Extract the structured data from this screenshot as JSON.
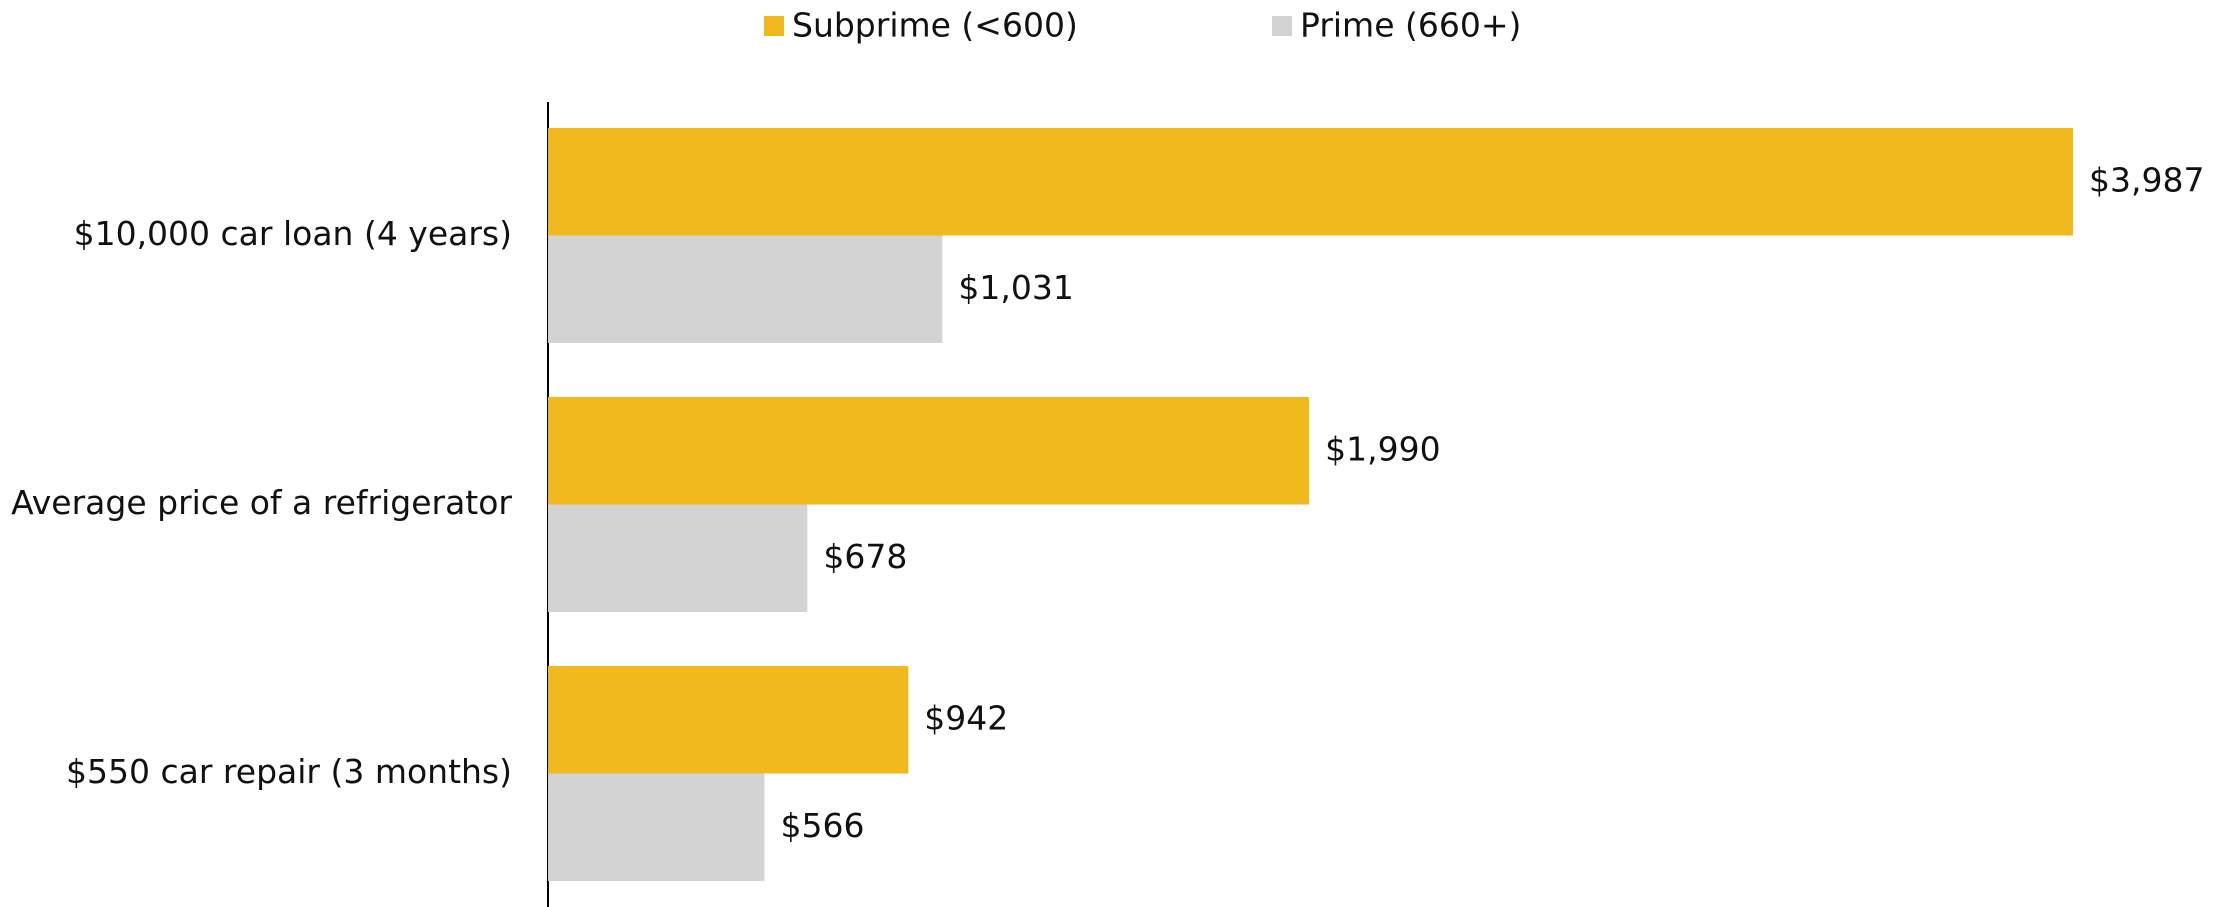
{
  "chart_data": {
    "type": "bar",
    "orientation": "horizontal",
    "categories": [
      "$10,000 car loan (4 years)",
      "Average price of a refrigerator",
      "$550 car repair (3 months)"
    ],
    "series": [
      {
        "name": "Subprime (<600)",
        "color": "#F0B91D",
        "values": [
          3987,
          1990,
          942
        ],
        "value_labels": [
          "$3,987",
          "$1,990",
          "$942"
        ]
      },
      {
        "name": "Prime (660+)",
        "color": "#D3D3D3",
        "values": [
          1031,
          678,
          566
        ],
        "value_labels": [
          "$1,031",
          "$678",
          "$566"
        ]
      }
    ],
    "legend": "top"
  }
}
